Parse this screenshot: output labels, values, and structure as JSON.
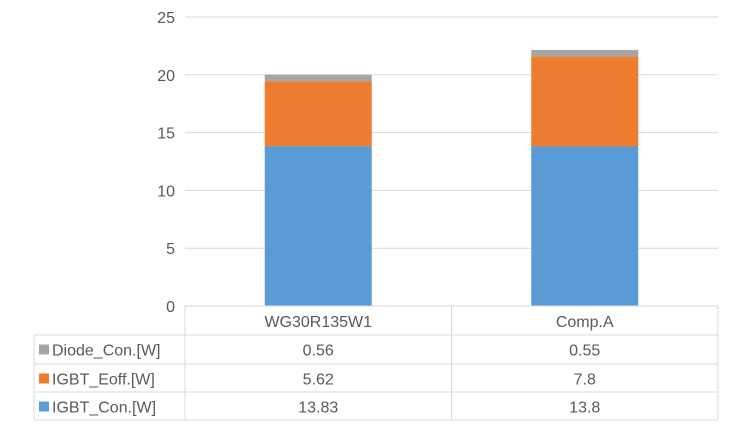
{
  "chart_data": {
    "type": "bar",
    "stacked": true,
    "title": "",
    "xlabel": "",
    "ylabel": "",
    "ylim": [
      0,
      25
    ],
    "yticks": [
      0,
      5,
      10,
      15,
      20,
      25
    ],
    "grid": true,
    "legend": "data-table-left",
    "categories": [
      "WG30R135W1",
      "Comp.A"
    ],
    "series": [
      {
        "name": "IGBT_Con.[W]",
        "values": [
          13.83,
          13.8
        ],
        "labels": [
          "13.83",
          "13.8"
        ],
        "color": "#5B9BD5"
      },
      {
        "name": "IGBT_Eoff.[W]",
        "values": [
          5.62,
          7.8
        ],
        "labels": [
          "5.62",
          "7.8"
        ],
        "color": "#ED7D31"
      },
      {
        "name": "Diode_Con.[W]",
        "values": [
          0.56,
          0.55
        ],
        "labels": [
          "0.56",
          "0.55"
        ],
        "color": "#A5A5A5"
      }
    ],
    "table_row_order": [
      2,
      1,
      0
    ]
  }
}
